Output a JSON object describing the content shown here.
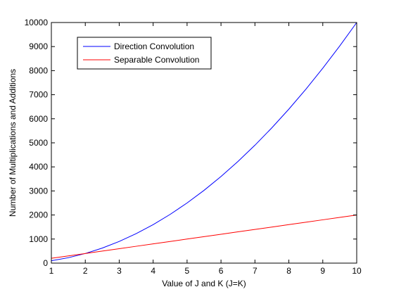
{
  "chart_data": {
    "type": "line",
    "title": "",
    "xlabel": "Value of J and K (J=K)",
    "ylabel": "Number of Multiplications and Additions",
    "xlim": [
      1,
      10
    ],
    "ylim": [
      0,
      10000
    ],
    "xticks": [
      1,
      2,
      3,
      4,
      5,
      6,
      7,
      8,
      9,
      10
    ],
    "yticks": [
      0,
      1000,
      2000,
      3000,
      4000,
      5000,
      6000,
      7000,
      8000,
      9000,
      10000
    ],
    "grid": false,
    "legend_position": "top-left",
    "x": [
      1,
      1.5,
      2,
      2.5,
      3,
      3.5,
      4,
      4.5,
      5,
      5.5,
      6,
      6.5,
      7,
      7.5,
      8,
      8.5,
      9,
      9.5,
      10
    ],
    "series": [
      {
        "name": "Direction Convolution",
        "color": "#0000ff",
        "values": [
          100,
          225,
          400,
          625,
          900,
          1225,
          1600,
          2025,
          2500,
          3025,
          3600,
          4225,
          4900,
          5625,
          6400,
          7225,
          8100,
          9025,
          10000
        ]
      },
      {
        "name": "Separable Convolution",
        "color": "#ff0000",
        "values": [
          200,
          300,
          400,
          500,
          600,
          700,
          800,
          900,
          1000,
          1100,
          1200,
          1300,
          1400,
          1500,
          1600,
          1700,
          1800,
          1900,
          2000
        ]
      }
    ]
  }
}
